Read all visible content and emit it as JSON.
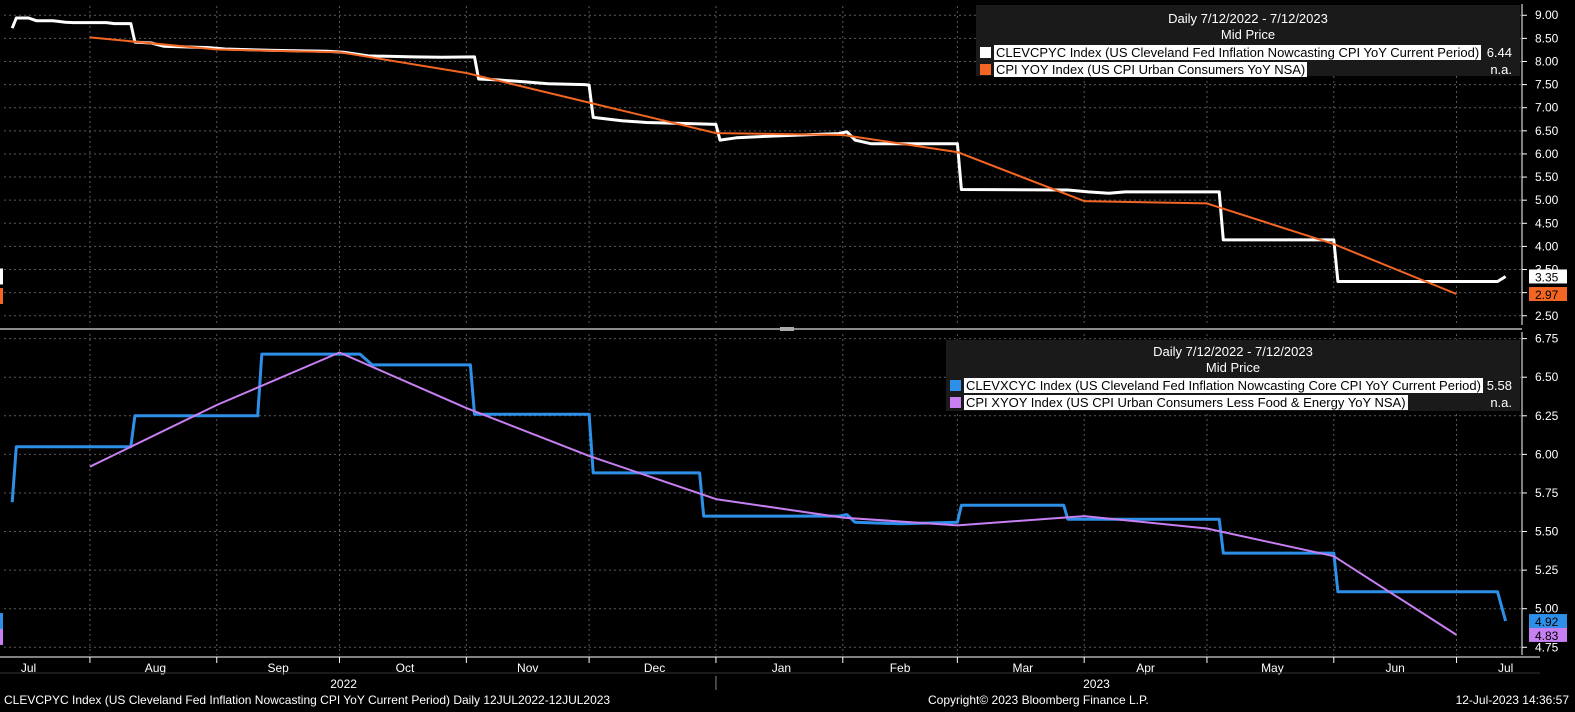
{
  "chart_data": [
    {
      "type": "line",
      "title": "Daily 7/12/2022 - 7/12/2023",
      "subtitle": "Mid Price",
      "ylim": [
        2.3,
        9.2
      ],
      "yticks": [
        "2.50",
        "3.00",
        "3.50",
        "4.00",
        "4.50",
        "5.00",
        "5.50",
        "6.00",
        "6.50",
        "7.00",
        "7.50",
        "8.00",
        "8.50",
        "9.00"
      ],
      "legend_position": "top-right",
      "series": [
        {
          "name": "CLEVCPYC Index (US Cleveland Fed Inflation Nowcasting CPI YoY Current Period)",
          "legend_value": "6.44",
          "last_label": "3.35",
          "color": "#ffffff",
          "style": "step",
          "points": [
            [
              "2022-07-12",
              8.72
            ],
            [
              "2022-07-13",
              8.94
            ],
            [
              "2022-07-16",
              8.94
            ],
            [
              "2022-07-18",
              8.88
            ],
            [
              "2022-07-22",
              8.88
            ],
            [
              "2022-07-25",
              8.85
            ],
            [
              "2022-07-27",
              8.84
            ],
            [
              "2022-08-04",
              8.84
            ],
            [
              "2022-08-06",
              8.82
            ],
            [
              "2022-08-10",
              8.82
            ],
            [
              "2022-08-11",
              8.42
            ],
            [
              "2022-08-15",
              8.4
            ],
            [
              "2022-08-18",
              8.33
            ],
            [
              "2022-08-29",
              8.3
            ],
            [
              "2022-09-02",
              8.27
            ],
            [
              "2022-09-14",
              8.24
            ],
            [
              "2022-09-27",
              8.22
            ],
            [
              "2022-10-01",
              8.2
            ],
            [
              "2022-10-07",
              8.12
            ],
            [
              "2022-10-18",
              8.1
            ],
            [
              "2022-10-25",
              8.09
            ],
            [
              "2022-11-02",
              8.1
            ],
            [
              "2022-11-03",
              7.62
            ],
            [
              "2022-11-08",
              7.6
            ],
            [
              "2022-11-14",
              7.56
            ],
            [
              "2022-11-20",
              7.52
            ],
            [
              "2022-11-29",
              7.5
            ],
            [
              "2022-11-30",
              7.49
            ],
            [
              "2022-12-01",
              6.79
            ],
            [
              "2022-12-08",
              6.72
            ],
            [
              "2022-12-14",
              6.68
            ],
            [
              "2022-12-27",
              6.65
            ],
            [
              "2022-12-31",
              6.64
            ],
            [
              "2023-01-01",
              6.3
            ],
            [
              "2023-01-05",
              6.35
            ],
            [
              "2023-01-12",
              6.38
            ],
            [
              "2023-01-24",
              6.42
            ],
            [
              "2023-01-30",
              6.44
            ],
            [
              "2023-02-01",
              6.48
            ],
            [
              "2023-02-03",
              6.3
            ],
            [
              "2023-02-07",
              6.22
            ],
            [
              "2023-02-28",
              6.22
            ],
            [
              "2023-03-01",
              5.23
            ],
            [
              "2023-03-27",
              5.22
            ],
            [
              "2023-04-01",
              5.18
            ],
            [
              "2023-04-06",
              5.15
            ],
            [
              "2023-04-10",
              5.18
            ],
            [
              "2023-05-03",
              5.18
            ],
            [
              "2023-05-04",
              4.14
            ],
            [
              "2023-05-31",
              4.14
            ],
            [
              "2023-06-01",
              3.24
            ],
            [
              "2023-06-28",
              3.24
            ],
            [
              "2023-07-10",
              3.24
            ],
            [
              "2023-07-12",
              3.35
            ]
          ]
        },
        {
          "name": "CPI YOY Index (US CPI Urban Consumers YoY NSA)",
          "legend_value": "n.a.",
          "last_label": "2.97",
          "color": "#f26522",
          "style": "line",
          "points": [
            [
              "2022-07-31",
              8.52
            ],
            [
              "2022-08-31",
              8.26
            ],
            [
              "2022-09-30",
              8.2
            ],
            [
              "2022-10-31",
              7.75
            ],
            [
              "2022-11-30",
              7.11
            ],
            [
              "2022-12-31",
              6.45
            ],
            [
              "2023-01-31",
              6.41
            ],
            [
              "2023-02-28",
              6.04
            ],
            [
              "2023-03-31",
              4.98
            ],
            [
              "2023-04-30",
              4.93
            ],
            [
              "2023-05-31",
              4.05
            ],
            [
              "2023-06-30",
              2.97
            ]
          ]
        }
      ]
    },
    {
      "type": "line",
      "title": "Daily 7/12/2022 - 7/12/2023",
      "subtitle": "Mid Price",
      "ylim": [
        4.7,
        6.78
      ],
      "yticks": [
        "4.75",
        "5.00",
        "5.25",
        "5.50",
        "5.75",
        "6.00",
        "6.25",
        "6.50",
        "6.75"
      ],
      "legend_position": "top-right",
      "series": [
        {
          "name": "CLEVXCYC Index (US Cleveland Fed Inflation Nowcasting Core CPI YoY Current Period)",
          "legend_value": "5.58",
          "last_label": "4.92",
          "color": "#2d8fe8",
          "style": "step",
          "points": [
            [
              "2022-07-12",
              5.69
            ],
            [
              "2022-07-13",
              6.05
            ],
            [
              "2022-08-10",
              6.05
            ],
            [
              "2022-08-11",
              6.25
            ],
            [
              "2022-09-10",
              6.25
            ],
            [
              "2022-09-11",
              6.65
            ],
            [
              "2022-10-05",
              6.65
            ],
            [
              "2022-10-08",
              6.58
            ],
            [
              "2022-11-01",
              6.58
            ],
            [
              "2022-11-02",
              6.26
            ],
            [
              "2022-11-30",
              6.26
            ],
            [
              "2022-12-01",
              5.88
            ],
            [
              "2022-12-27",
              5.88
            ],
            [
              "2022-12-28",
              5.6
            ],
            [
              "2023-01-30",
              5.6
            ],
            [
              "2023-02-01",
              5.61
            ],
            [
              "2023-02-03",
              5.56
            ],
            [
              "2023-02-14",
              5.55
            ],
            [
              "2023-02-28",
              5.56
            ],
            [
              "2023-03-01",
              5.67
            ],
            [
              "2023-03-26",
              5.67
            ],
            [
              "2023-03-27",
              5.58
            ],
            [
              "2023-05-03",
              5.58
            ],
            [
              "2023-05-04",
              5.36
            ],
            [
              "2023-05-31",
              5.36
            ],
            [
              "2023-06-01",
              5.11
            ],
            [
              "2023-06-28",
              5.11
            ],
            [
              "2023-07-10",
              5.11
            ],
            [
              "2023-07-12",
              4.92
            ]
          ]
        },
        {
          "name": "CPI XYOY Index (US CPI Urban Consumers Less Food & Energy YoY NSA)",
          "legend_value": "n.a.",
          "last_label": "4.83",
          "color": "#c77ff2",
          "style": "line",
          "points": [
            [
              "2022-07-31",
              5.92
            ],
            [
              "2022-08-31",
              6.32
            ],
            [
              "2022-09-30",
              6.66
            ],
            [
              "2022-10-31",
              6.3
            ],
            [
              "2022-11-30",
              5.99
            ],
            [
              "2022-12-31",
              5.71
            ],
            [
              "2023-01-31",
              5.59
            ],
            [
              "2023-02-28",
              5.54
            ],
            [
              "2023-03-31",
              5.6
            ],
            [
              "2023-04-30",
              5.52
            ],
            [
              "2023-05-31",
              5.34
            ],
            [
              "2023-06-30",
              4.83
            ]
          ]
        }
      ]
    }
  ],
  "x_axis": {
    "range": [
      "2022-07-10",
      "2023-07-16"
    ],
    "months": [
      {
        "label": "Jul",
        "date": "2022-07-16"
      },
      {
        "label": "Aug",
        "date": "2022-08-16"
      },
      {
        "label": "Sep",
        "date": "2022-09-15"
      },
      {
        "label": "Oct",
        "date": "2022-10-16"
      },
      {
        "label": "Nov",
        "date": "2022-11-15"
      },
      {
        "label": "Dec",
        "date": "2022-12-16"
      },
      {
        "label": "Jan",
        "date": "2023-01-16"
      },
      {
        "label": "Feb",
        "date": "2023-02-14"
      },
      {
        "label": "Mar",
        "date": "2023-03-16"
      },
      {
        "label": "Apr",
        "date": "2023-04-15"
      },
      {
        "label": "May",
        "date": "2023-05-16"
      },
      {
        "label": "Jun",
        "date": "2023-06-15"
      },
      {
        "label": "Jul",
        "date": "2023-07-12"
      }
    ],
    "gridlines": [
      "2022-07-31",
      "2022-08-31",
      "2022-09-30",
      "2022-10-31",
      "2022-11-30",
      "2022-12-31",
      "2023-01-31",
      "2023-02-28",
      "2023-03-31",
      "2023-04-30",
      "2023-05-31",
      "2023-06-30"
    ],
    "years": [
      {
        "label": "2022",
        "date": "2022-10-01"
      },
      {
        "label": "2023",
        "date": "2023-04-03"
      }
    ],
    "year_divider": "2022-12-31"
  },
  "grid": true,
  "footer": {
    "left": "CLEVCPYC Index (US Cleveland Fed Inflation Nowcasting CPI YoY Current Period)  Daily 12JUL2022-12JUL2023",
    "center": "Copyright© 2023 Bloomberg Finance L.P.",
    "right": "12-Jul-2023 14:36:57"
  }
}
